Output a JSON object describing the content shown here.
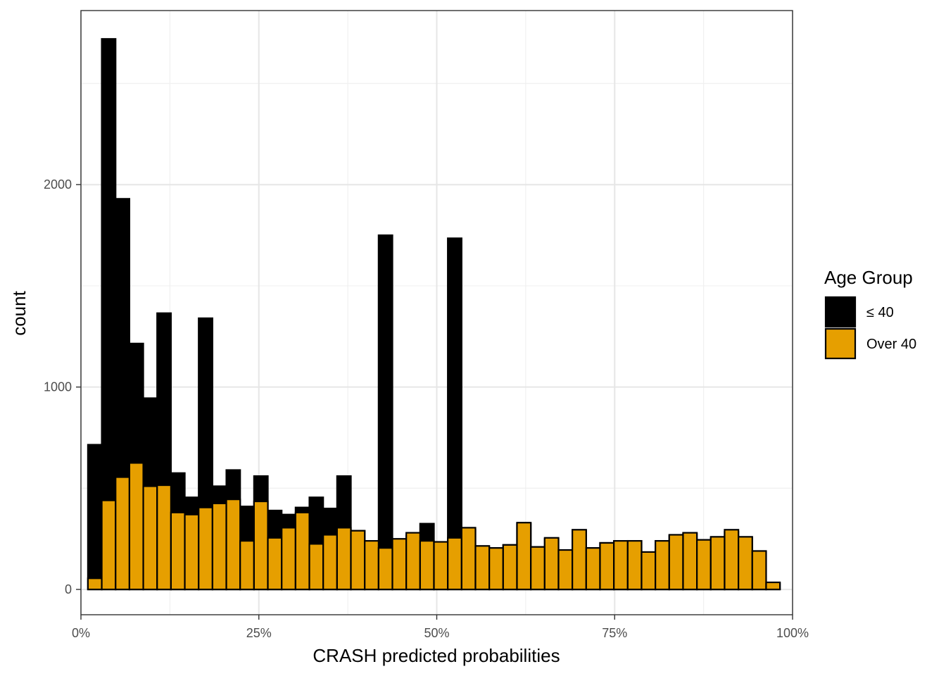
{
  "chart_data": {
    "type": "bar",
    "subtype": "overlaid-histogram",
    "xlabel": "CRASH predicted probabilities",
    "ylabel": "count",
    "xlim": [
      0,
      100
    ],
    "ylim": [
      -125,
      2860
    ],
    "x_ticks": [
      0,
      25,
      50,
      75,
      100
    ],
    "x_tick_labels": [
      "0%",
      "25%",
      "50%",
      "75%",
      "100%"
    ],
    "y_ticks": [
      0,
      1000,
      2000
    ],
    "y_tick_labels": [
      "0",
      "1000",
      "2000"
    ],
    "grid": true,
    "bin_width": 1.945,
    "bin_start": 0.98,
    "legend": {
      "title": "Age Group",
      "position": "right",
      "entries": [
        {
          "label": "≤ 40",
          "color": "#000000"
        },
        {
          "label": "Over 40",
          "color": "#E69F00"
        }
      ]
    },
    "series": [
      {
        "name": "≤ 40",
        "color": "#000000",
        "values": [
          715,
          2720,
          1930,
          1215,
          945,
          1365,
          575,
          455,
          1340,
          510,
          590,
          410,
          560,
          390,
          370,
          405,
          455,
          400,
          560,
          290,
          235,
          1750,
          245,
          265,
          325,
          225,
          1735,
          295,
          210,
          205,
          220,
          325,
          210,
          250,
          190,
          290,
          205,
          230,
          235,
          240,
          180,
          240,
          265,
          275,
          245,
          255,
          285,
          255,
          185,
          30
        ]
      },
      {
        "name": "Over 40",
        "color": "#E69F00",
        "values": [
          55,
          440,
          555,
          625,
          510,
          515,
          380,
          370,
          405,
          425,
          445,
          240,
          435,
          255,
          305,
          380,
          225,
          270,
          305,
          290,
          240,
          205,
          250,
          280,
          240,
          235,
          255,
          305,
          215,
          205,
          220,
          330,
          210,
          255,
          195,
          295,
          205,
          230,
          240,
          240,
          185,
          240,
          270,
          280,
          245,
          260,
          295,
          260,
          190,
          35
        ]
      }
    ]
  }
}
